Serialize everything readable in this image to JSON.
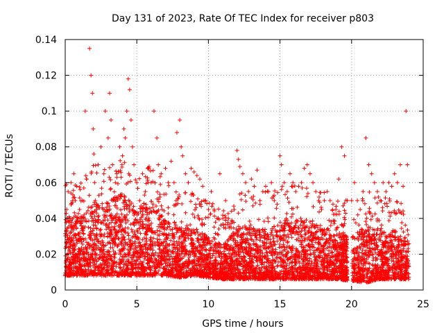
{
  "chart_data": {
    "type": "scatter",
    "title": "Day 131 of 2023, Rate Of TEC Index for receiver p803",
    "xlabel": "GPS time / hours",
    "ylabel": "ROTI / TECUs",
    "xlim": [
      0,
      25
    ],
    "ylim": [
      0,
      0.14
    ],
    "xticks": [
      0,
      5,
      10,
      15,
      20,
      25
    ],
    "yticks": [
      0,
      0.02,
      0.04,
      0.06,
      0.08,
      0.1,
      0.12,
      0.14
    ],
    "xtick_labels": [
      "0",
      "5",
      "10",
      "15",
      "20",
      "25"
    ],
    "ytick_labels": [
      "0",
      "0.02",
      "0.04",
      "0.06",
      "0.08",
      "0.1",
      "0.12",
      "0.14"
    ],
    "grid": true,
    "marker": "+",
    "color": "#ff0000",
    "series": [
      {
        "x": [
          0.1,
          0.2,
          0.4,
          0.5,
          0.6,
          0.7,
          0.8,
          0.9,
          1.0,
          1.2,
          1.4,
          1.5,
          1.7,
          1.8,
          1.9,
          1.95,
          2.0,
          2.05,
          2.1,
          2.2,
          2.3,
          2.5,
          2.7,
          2.8,
          3.0,
          3.1,
          3.2,
          3.3,
          3.5,
          3.6,
          3.8,
          4.0,
          4.1,
          4.2,
          4.3,
          4.4,
          4.5,
          4.6,
          4.7,
          4.8,
          5.0,
          5.2,
          5.4,
          5.6,
          5.8,
          6.0,
          6.2,
          6.4,
          6.5,
          6.7,
          7.0,
          7.2,
          7.4,
          7.6,
          7.8,
          8.0,
          8.1,
          8.2,
          8.4,
          8.6,
          8.8,
          9.0,
          9.2,
          9.4,
          9.6,
          9.8,
          10.0,
          10.2,
          10.4,
          10.6,
          10.8,
          11.0,
          11.2,
          11.4,
          11.8,
          12.0,
          12.1,
          12.2,
          12.4,
          12.6,
          12.8,
          13.0,
          13.2,
          13.4,
          13.6,
          13.8,
          14.0,
          14.2,
          14.4,
          14.6,
          14.8,
          15.0,
          15.1,
          15.3,
          15.5,
          15.7,
          15.9,
          16.1,
          16.3,
          16.5,
          16.7,
          16.9,
          17.1,
          17.3,
          17.5,
          17.7,
          17.9,
          18.1,
          18.3,
          18.5,
          18.7,
          18.9,
          19.1,
          19.3,
          19.5,
          19.7,
          20.0,
          20.2,
          20.4,
          20.6,
          20.8,
          21.0,
          21.2,
          21.4,
          21.6,
          21.8,
          22.0,
          22.2,
          22.4,
          22.6,
          22.8,
          23.0,
          23.2,
          23.4,
          23.6,
          23.8,
          23.9
        ],
        "y": [
          0.045,
          0.055,
          0.06,
          0.035,
          0.065,
          0.05,
          0.058,
          0.04,
          0.045,
          0.05,
          0.1,
          0.062,
          0.135,
          0.12,
          0.11,
          0.09,
          0.076,
          0.06,
          0.05,
          0.045,
          0.07,
          0.08,
          0.065,
          0.1,
          0.085,
          0.11,
          0.095,
          0.07,
          0.06,
          0.065,
          0.08,
          0.075,
          0.09,
          0.085,
          0.1,
          0.118,
          0.112,
          0.095,
          0.08,
          0.07,
          0.06,
          0.05,
          0.065,
          0.055,
          0.06,
          0.06,
          0.1,
          0.085,
          0.07,
          0.065,
          0.068,
          0.06,
          0.072,
          0.06,
          0.088,
          0.095,
          0.08,
          0.075,
          0.065,
          0.06,
          0.068,
          0.066,
          0.064,
          0.062,
          0.058,
          0.05,
          0.045,
          0.055,
          0.045,
          0.04,
          0.065,
          0.04,
          0.05,
          0.04,
          0.045,
          0.078,
          0.073,
          0.069,
          0.065,
          0.06,
          0.055,
          0.062,
          0.058,
          0.067,
          0.05,
          0.055,
          0.058,
          0.055,
          0.06,
          0.05,
          0.048,
          0.075,
          0.07,
          0.06,
          0.055,
          0.065,
          0.06,
          0.055,
          0.058,
          0.06,
          0.068,
          0.07,
          0.065,
          0.06,
          0.055,
          0.05,
          0.045,
          0.05,
          0.055,
          0.05,
          0.048,
          0.045,
          0.062,
          0.08,
          0.075,
          0.05,
          0.05,
          0.06,
          0.05,
          0.045,
          0.055,
          0.085,
          0.07,
          0.065,
          0.06,
          0.055,
          0.05,
          0.06,
          0.055,
          0.06,
          0.058,
          0.065,
          0.06,
          0.07,
          0.058,
          0.1,
          0.07
        ]
      }
    ],
    "envelope": {
      "x": [
        0,
        1,
        2,
        3,
        4,
        5,
        6,
        7,
        8,
        9,
        10,
        11,
        12,
        13,
        14,
        15,
        16,
        17,
        18,
        19,
        20,
        21,
        22,
        23,
        24
      ],
      "lower": [
        0.008,
        0.008,
        0.008,
        0.008,
        0.008,
        0.008,
        0.008,
        0.008,
        0.007,
        0.008,
        0.007,
        0.006,
        0.006,
        0.006,
        0.006,
        0.006,
        0.006,
        0.006,
        0.006,
        0.006,
        0.005,
        0.004,
        0.006,
        0.006,
        0.006
      ],
      "upper": [
        0.042,
        0.04,
        0.05,
        0.05,
        0.055,
        0.045,
        0.05,
        0.04,
        0.035,
        0.035,
        0.03,
        0.025,
        0.035,
        0.035,
        0.035,
        0.04,
        0.04,
        0.038,
        0.035,
        0.032,
        0.03,
        0.035,
        0.035,
        0.03,
        0.03
      ]
    }
  }
}
